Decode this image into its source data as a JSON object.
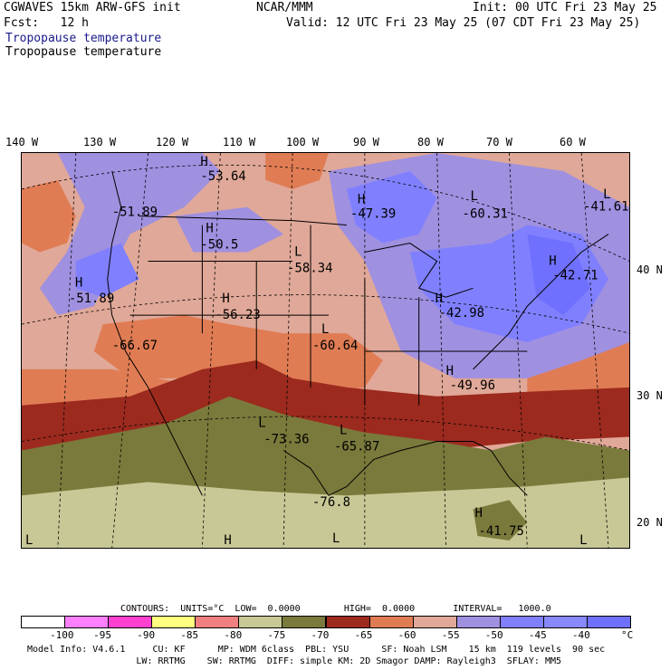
{
  "header": {
    "model_line": "CGWAVES 15km ARW-GFS init",
    "org": "NCAR/MMM",
    "init": "Init: 00 UTC Fri 23 May 25",
    "fcst": "Fcst:   12 h",
    "valid": "Valid: 12 UTC Fri 23 May 25 (07 CDT Fri 23 May 25)",
    "field1": "Tropopause temperature",
    "field2": "Tropopause temperature"
  },
  "longitudes": [
    "140 W",
    "130 W",
    "120 W",
    "110 W",
    "100 W",
    "90 W",
    "80 W",
    "70 W",
    "60 W"
  ],
  "latitudes": [
    "40 N",
    "30 N",
    "20 N"
  ],
  "map_labels": {
    "h1": "H",
    "v1": "-53.64",
    "v2": "-51.89",
    "h3": "H",
    "v3": "-50.5",
    "l4": "L",
    "v4": "-58.34",
    "h5": "H",
    "v5": "-47.39",
    "l6": "L",
    "v6": "-60.31",
    "v7": "-41.61",
    "h8": "H",
    "v8": "-42.71",
    "h9": "H",
    "v9": "-51.89",
    "h10": "H",
    "v10": "-56.23",
    "v11": "-66.67",
    "l12": "L",
    "v12": "-60.64",
    "h13": "H",
    "v13": "-42.98",
    "h14": "H",
    "v14": "-49.96",
    "l15": "L",
    "v15": "-73.36",
    "l16": "L",
    "v16": "-65.87",
    "v17": "-76.8",
    "h18": "H",
    "v18": "-41.75",
    "l19": "L",
    "h20": "H",
    "l21": "L",
    "l22": "L",
    "l23": "L"
  },
  "contours": {
    "label": "CONTOURS:  UNITS=°C  LOW=  0.0000        HIGH=  0.0000       INTERVAL=   1000.0"
  },
  "colorbar": {
    "colors": [
      "#ffffff",
      "#ff80ff",
      "#ff40d0",
      "#ffff80",
      "#f08080",
      "#c8c896",
      "#7a7a3c",
      "#9c2a1e",
      "#e07c54",
      "#e0a898",
      "#a090e0",
      "#8080ff",
      "#8888ff",
      "#7070ff"
    ],
    "tick_labels": [
      "-100",
      "-95",
      "-90",
      "-85",
      "-80",
      "-75",
      "-70",
      "-65",
      "-60",
      "-55",
      "-50",
      "-45",
      "-40",
      "°C"
    ]
  },
  "footer": {
    "line1": "Model Info: V4.6.1     CU: KF      MP: WDM 6class  PBL: YSU      SF: Noah LSM    15 km  119 levels  90 sec",
    "line2": "                    LW: RRTMG    SW: RRTMG  DIFF: simple KM: 2D Smagor DAMP: Rayleigh3  SFLAY: MM5"
  }
}
